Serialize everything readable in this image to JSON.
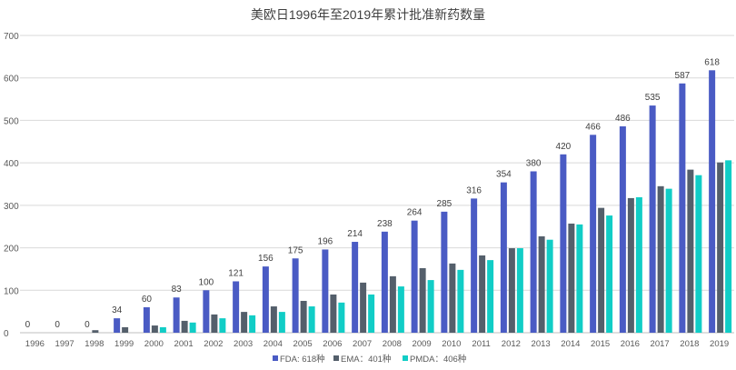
{
  "chart_data": {
    "type": "bar",
    "title": "美欧日1996年至2019年累计批准新药数量",
    "xlabel": "",
    "ylabel": "",
    "ylim": [
      0,
      700
    ],
    "yticks": [
      0,
      100,
      200,
      300,
      400,
      500,
      600,
      700
    ],
    "grid": true,
    "legend_position": "bottom",
    "categories": [
      "1996",
      "1997",
      "1998",
      "1999",
      "2000",
      "2001",
      "2002",
      "2003",
      "2004",
      "2005",
      "2006",
      "2007",
      "2008",
      "2009",
      "2010",
      "2011",
      "2012",
      "2013",
      "2014",
      "2015",
      "2016",
      "2017",
      "2018",
      "2019"
    ],
    "series": [
      {
        "name": "FDA: 618种",
        "color": "#4a5bc4",
        "show_labels": true,
        "values": [
          0,
          0,
          0,
          34,
          60,
          83,
          100,
          121,
          156,
          175,
          196,
          214,
          238,
          264,
          285,
          316,
          354,
          380,
          420,
          466,
          486,
          535,
          587,
          618
        ]
      },
      {
        "name": "EMA：401种",
        "color": "#545f6b",
        "show_labels": false,
        "values": [
          0,
          0,
          6,
          13,
          17,
          28,
          43,
          49,
          62,
          75,
          90,
          118,
          133,
          152,
          163,
          182,
          199,
          227,
          257,
          294,
          317,
          345,
          384,
          401
        ]
      },
      {
        "name": "PMDA：406种",
        "color": "#11cdc6",
        "show_labels": false,
        "values": [
          0,
          0,
          0,
          0,
          13,
          24,
          34,
          41,
          49,
          62,
          71,
          90,
          109,
          124,
          148,
          171,
          199,
          219,
          255,
          276,
          319,
          339,
          371,
          406
        ]
      }
    ]
  }
}
